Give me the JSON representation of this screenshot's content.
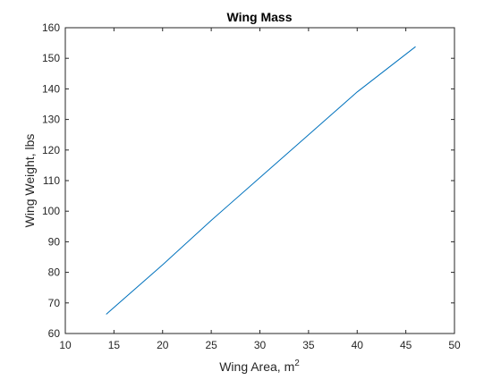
{
  "chart_data": {
    "type": "line",
    "title": "Wing Mass",
    "xlabel": "Wing Area, m",
    "xlabel_superscript": "2",
    "ylabel": "Wing Weight, lbs",
    "xlim": [
      10,
      50
    ],
    "ylim": [
      60,
      160
    ],
    "xticks": [
      10,
      15,
      20,
      25,
      30,
      35,
      40,
      45,
      50
    ],
    "yticks": [
      60,
      70,
      80,
      90,
      100,
      110,
      120,
      130,
      140,
      150,
      160
    ],
    "grid": false,
    "legend": "none",
    "series": [
      {
        "color": "#0072bd",
        "x": [
          14.2,
          20,
          25,
          30,
          35,
          40,
          46
        ],
        "y": [
          66.3,
          82.5,
          97,
          111,
          125,
          139,
          153.8
        ]
      }
    ]
  }
}
